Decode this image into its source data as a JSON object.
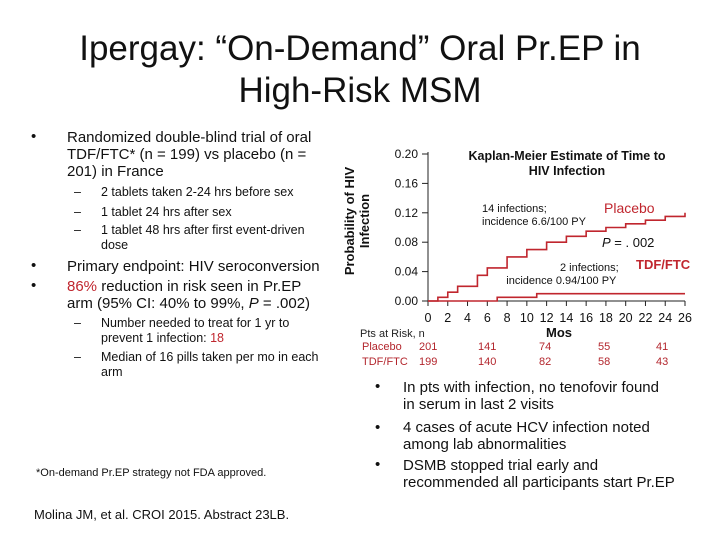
{
  "title_line1": "Ipergay: “On-Demand” Oral Pr.EP in",
  "title_line2": "High-Risk MSM",
  "left": {
    "b1": {
      "line1": "Randomized double-blind trial of oral",
      "line2": "TDF/FTC* (n = 199) vs placebo (n =",
      "line3": "201) in France",
      "sub1": "2 tablets taken 2-24 hrs before sex",
      "sub2": "1 tablet 24 hrs after sex",
      "sub3_l1": "1 tablet 48 hrs after first event-driven",
      "sub3_l2": "dose"
    },
    "b2": "Primary endpoint: HIV seroconversion",
    "b3": {
      "pct": "86%",
      "line1_rest": " reduction in risk seen in Pr.EP",
      "line2_a": "arm (95% CI: 40% to 99%, ",
      "p": "P",
      "line2_b": " = .002)",
      "sub1_l1": "Number needed to treat for 1 yr to",
      "sub1_l2a": "prevent 1 infection: ",
      "sub1_l2b": "18",
      "sub2_l1": "Median of 16 pills taken per mo in each",
      "sub2_l2": "arm"
    },
    "footnote": "*On-demand Pr.EP strategy not FDA approved.",
    "citation": "Molina JM, et al. CROI 2015. Abstract 23LB."
  },
  "chart_data": {
    "type": "line",
    "title_l1": "Kaplan-Meier Estimate of Time to",
    "title_l2": "HIV Infection",
    "ylabel_l1": "Probability of HIV",
    "ylabel_l2": "Infection",
    "xlabel": "Mos",
    "ylim": [
      0,
      0.2
    ],
    "xlim": [
      0,
      26
    ],
    "yticks": [
      "0.20",
      "0.16",
      "0.12",
      "0.08",
      "0.04",
      "0.00"
    ],
    "xticks": [
      "0",
      "2",
      "4",
      "6",
      "8",
      "10",
      "12",
      "14",
      "16",
      "18",
      "20",
      "22",
      "24",
      "26"
    ],
    "series": [
      {
        "name": "Placebo",
        "color": "#c0262e",
        "x": [
          0,
          1,
          2,
          3,
          5,
          6,
          8,
          10,
          12,
          14,
          16,
          18,
          20,
          22,
          24,
          26
        ],
        "y": [
          0,
          0.005,
          0.012,
          0.02,
          0.035,
          0.045,
          0.06,
          0.07,
          0.08,
          0.088,
          0.095,
          0.1,
          0.105,
          0.11,
          0.115,
          0.12
        ]
      },
      {
        "name": "TDF/FTC",
        "color": "#c0262e",
        "x": [
          0,
          7,
          7,
          11,
          11,
          26
        ],
        "y": [
          0,
          0,
          0.005,
          0.005,
          0.01,
          0.01
        ]
      }
    ],
    "annotations": {
      "placebo_l1": "14 infections;",
      "placebo_l2": "incidence 6.6/100 PY",
      "pvalue_a": "P",
      "pvalue_b": " = . 002",
      "tdf_l1": "2 infections;",
      "tdf_l2": "incidence 0.94/100 PY"
    },
    "risk_table": {
      "header": "Pts at Risk, n",
      "rows": [
        {
          "label": "Placebo",
          "values": [
            "201",
            "141",
            "74",
            "55",
            "41"
          ]
        },
        {
          "label": "TDF/FTC",
          "values": [
            "199",
            "140",
            "82",
            "58",
            "43"
          ]
        }
      ]
    }
  },
  "right_bullets": {
    "b1_l1": "In pts with infection, no tenofovir found",
    "b1_l2": "in serum in last 2 visits",
    "b2_l1": "4 cases of acute HCV infection noted",
    "b2_l2": "among lab abnormalities",
    "b3_l1": "DSMB stopped trial early and",
    "b3_l2": "recommended all participants start Pr.EP"
  },
  "bullet_char": "•",
  "dash_char": "–"
}
